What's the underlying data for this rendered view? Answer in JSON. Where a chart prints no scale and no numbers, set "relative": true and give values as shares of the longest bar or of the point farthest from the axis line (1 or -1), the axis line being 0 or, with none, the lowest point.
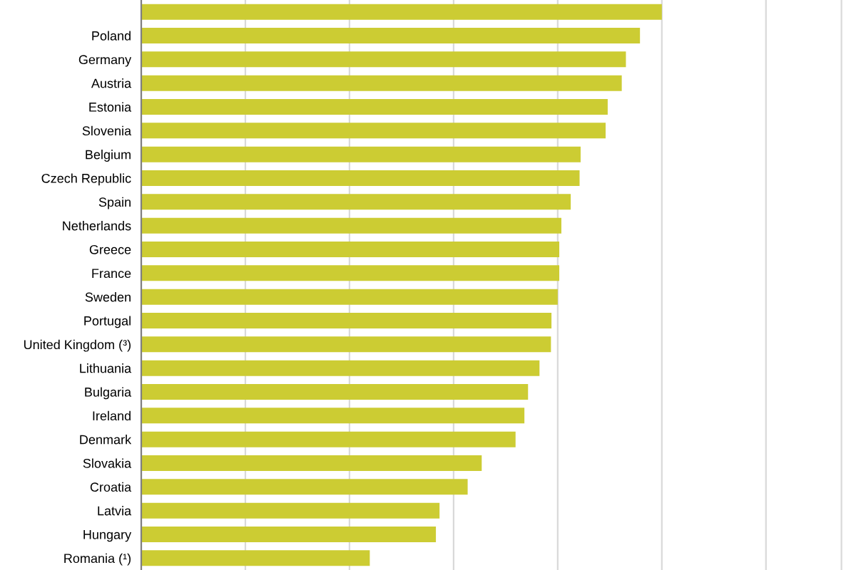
{
  "chart_data": {
    "type": "bar",
    "orientation": "horizontal",
    "relative": true,
    "categories": [
      null,
      "Poland",
      "Germany",
      "Austria",
      "Estonia",
      "Slovenia",
      "Belgium",
      "Czech Republic",
      "Spain",
      "Netherlands",
      "Greece",
      "France",
      "Sweden",
      "Portugal",
      "United Kingdom (³)",
      "Lithuania",
      "Bulgaria",
      "Ireland",
      "Denmark",
      "Slovakia",
      "Croatia",
      "Latvia",
      "Hungary",
      "Romania (¹)"
    ],
    "values": [
      1,
      0.958,
      0.931,
      0.923,
      0.896,
      0.892,
      0.844,
      0.842,
      0.825,
      0.807,
      0.803,
      0.803,
      0.8,
      0.788,
      0.787,
      0.765,
      0.743,
      0.736,
      0.719,
      0.654,
      0.627,
      0.573,
      0.566,
      0.439
    ],
    "color": "#cccc33",
    "grid": "x",
    "tick_labels": "y"
  }
}
